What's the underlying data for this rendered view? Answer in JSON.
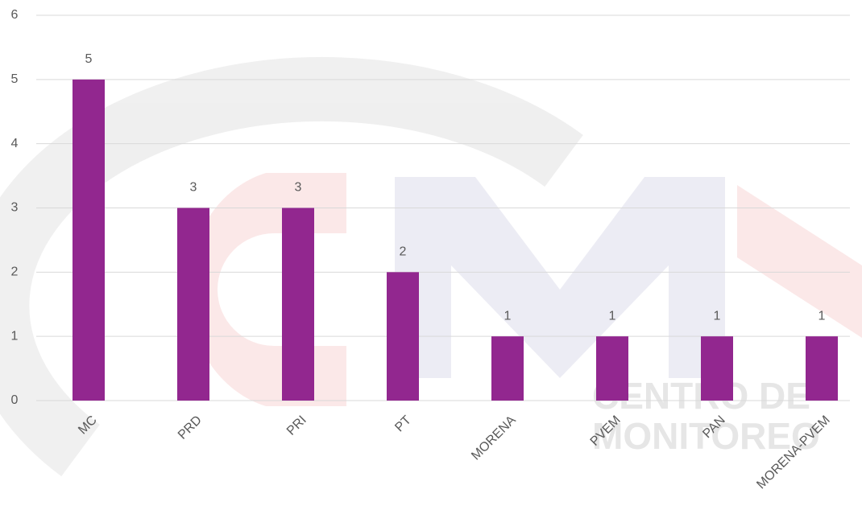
{
  "watermark": [
    "CENTRO DE",
    "MONITOREO"
  ],
  "chart_data": {
    "type": "bar",
    "categories": [
      "MC",
      "PRD",
      "PRI",
      "PT",
      "MORENA",
      "PVEM",
      "PAN",
      "MORENA-PVEM"
    ],
    "values": [
      5,
      3,
      3,
      2,
      1,
      1,
      1,
      1
    ],
    "color": "#92278f",
    "ylim": [
      0,
      6
    ],
    "yticks": [
      0,
      1,
      2,
      3,
      4,
      5,
      6
    ],
    "grid": true
  }
}
